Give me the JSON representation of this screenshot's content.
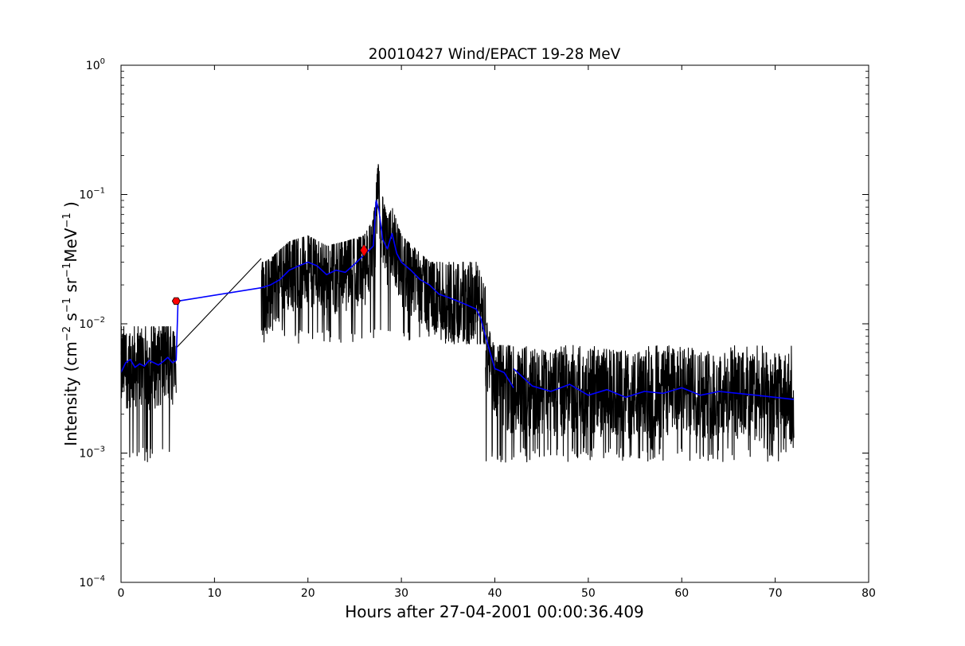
{
  "chart_data": {
    "type": "line",
    "title": "20010427 Wind/EPACT 19-28 MeV",
    "xlabel": "Hours after 27-04-2001 00:00:36.409",
    "ylabel": {
      "prefix": "Intensity (cm",
      "exp1": "−2",
      "s": " s",
      "exp2": "−1",
      "sr": " sr",
      "exp3": "−1",
      "mev": "MeV",
      "exp4": "−1",
      "suffix": " )"
    },
    "xlim": [
      0,
      80
    ],
    "ylim": [
      0.0001,
      1
    ],
    "yscale": "log",
    "grid": false,
    "x_ticks": [
      0,
      10,
      20,
      30,
      40,
      50,
      60,
      70,
      80
    ],
    "y_ticks": [
      {
        "value": 0.0001,
        "base": "10",
        "exp": "−4"
      },
      {
        "value": 0.001,
        "base": "10",
        "exp": "−3"
      },
      {
        "value": 0.01,
        "base": "10",
        "exp": "−2"
      },
      {
        "value": 0.1,
        "base": "10",
        "exp": "−1"
      },
      {
        "value": 1,
        "base": "10",
        "exp": "0"
      }
    ],
    "series": [
      {
        "color": "#000000",
        "style": "raw",
        "segments": [
          {
            "x": [
              0,
              1,
              2,
              3,
              4,
              5,
              5.9
            ],
            "y": [
              0.0045,
              0.005,
              0.0048,
              0.0047,
              0.005,
              0.0052,
              0.005
            ],
            "noise_low": 0.00085,
            "noise_high": 0.0095
          },
          {
            "x": [
              5.9,
              15
            ],
            "y": [
              0.0065,
              0.032
            ]
          },
          {
            "x": [
              15,
              16,
              18,
              20,
              22,
              24,
              26,
              27,
              27.5,
              28,
              28.5,
              29,
              30,
              32,
              34,
              36,
              38,
              39
            ],
            "y": [
              0.018,
              0.02,
              0.027,
              0.03,
              0.025,
              0.027,
              0.03,
              0.04,
              0.11,
              0.06,
              0.04,
              0.05,
              0.03,
              0.022,
              0.016,
              0.015,
              0.014,
              0.009
            ],
            "noise_low": 0.007,
            "noise_high": 0.03
          },
          {
            "x": [
              39,
              40,
              41,
              42,
              45,
              50,
              55,
              60,
              65,
              70,
              72
            ],
            "y": [
              0.007,
              0.004,
              0.0035,
              0.003,
              0.003,
              0.003,
              0.0028,
              0.003,
              0.0028,
              0.0027,
              0.0026
            ],
            "noise_low": 0.00085,
            "noise_high": 0.0068
          }
        ]
      },
      {
        "color": "#0000ff",
        "style": "smoothed",
        "segments": [
          {
            "x": [
              0,
              0.5,
              1,
              1.5,
              2,
              2.5,
              3,
              3.5,
              4,
              4.5,
              5,
              5.5,
              5.9
            ],
            "y": [
              0.0042,
              0.005,
              0.0053,
              0.0046,
              0.0049,
              0.0047,
              0.0052,
              0.005,
              0.0048,
              0.0051,
              0.0055,
              0.005,
              0.0052
            ]
          },
          {
            "x": [
              5.9,
              6.1
            ],
            "y": [
              0.0052,
              0.015
            ]
          },
          {
            "x": [
              6.1,
              15
            ],
            "y": [
              0.015,
              0.019
            ]
          },
          {
            "x": [
              15,
              16,
              17,
              18,
              19,
              20,
              21,
              22,
              23,
              24,
              25,
              26,
              27,
              27.3,
              27.6,
              28,
              28.5,
              29,
              29.5,
              30,
              31,
              32,
              33,
              34,
              35,
              36,
              37,
              38,
              38.5,
              39,
              39.5,
              40,
              41,
              42
            ],
            "y": [
              0.019,
              0.02,
              0.022,
              0.026,
              0.028,
              0.03,
              0.028,
              0.024,
              0.026,
              0.025,
              0.029,
              0.034,
              0.04,
              0.09,
              0.075,
              0.045,
              0.038,
              0.05,
              0.035,
              0.03,
              0.026,
              0.022,
              0.02,
              0.017,
              0.016,
              0.015,
              0.014,
              0.013,
              0.011,
              0.008,
              0.006,
              0.0045,
              0.0042,
              0.0032
            ]
          },
          {
            "x": [
              42,
              44,
              46,
              48,
              50,
              52,
              54,
              56,
              58,
              60,
              62,
              64,
              66,
              68,
              70,
              72
            ],
            "y": [
              0.0045,
              0.0033,
              0.003,
              0.0034,
              0.0028,
              0.0031,
              0.0027,
              0.003,
              0.0029,
              0.0032,
              0.0028,
              0.003,
              0.0029,
              0.0028,
              0.0027,
              0.0026
            ]
          }
        ]
      }
    ],
    "markers": [
      {
        "x": 5.9,
        "y": 0.015,
        "shape": "hexagon",
        "color": "#ff0000"
      },
      {
        "x": 26.0,
        "y": 0.037,
        "shape": "diamond",
        "color": "#ff0000"
      }
    ]
  }
}
